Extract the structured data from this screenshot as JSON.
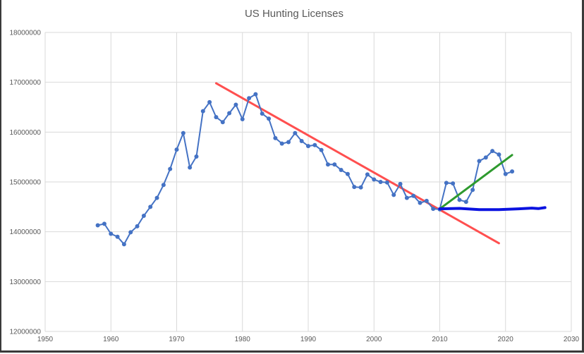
{
  "chart_data": {
    "type": "scatter",
    "title": "US Hunting Licenses",
    "xlabel": "",
    "ylabel": "",
    "xlim": [
      1950,
      2030
    ],
    "ylim": [
      12000000,
      18000000
    ],
    "x_ticks": [
      "1950",
      "1960",
      "1970",
      "1980",
      "1990",
      "2000",
      "2010",
      "2020",
      "2030"
    ],
    "y_ticks": [
      "12000000",
      "13000000",
      "14000000",
      "15000000",
      "16000000",
      "17000000",
      "18000000"
    ],
    "grid": true,
    "legend": "none",
    "series": [
      {
        "style": "line-markers",
        "color": "#4472c4",
        "x": [
          1958,
          1959,
          1960,
          1961,
          1962,
          1963,
          1964,
          1965,
          1966,
          1967,
          1968,
          1969,
          1970,
          1971,
          1972,
          1973,
          1974,
          1975,
          1976,
          1977,
          1978,
          1979,
          1980,
          1981,
          1982,
          1983,
          1984,
          1985,
          1986,
          1987,
          1988,
          1989,
          1990,
          1991,
          1992,
          1993,
          1994,
          1995,
          1996,
          1997,
          1998,
          1999,
          2000,
          2001,
          2002,
          2003,
          2004,
          2005,
          2006,
          2007,
          2008,
          2009,
          2010,
          2011,
          2012,
          2013,
          2014,
          2015,
          2016,
          2017,
          2018,
          2019,
          2020,
          2021
        ],
        "y": [
          14130000,
          14160000,
          13960000,
          13900000,
          13750000,
          13990000,
          14110000,
          14320000,
          14500000,
          14680000,
          14940000,
          15260000,
          15650000,
          15980000,
          15290000,
          15510000,
          16420000,
          16600000,
          16300000,
          16200000,
          16380000,
          16550000,
          16260000,
          16680000,
          16760000,
          16370000,
          16270000,
          15880000,
          15770000,
          15800000,
          15980000,
          15820000,
          15720000,
          15740000,
          15640000,
          15350000,
          15350000,
          15240000,
          15160000,
          14900000,
          14890000,
          15150000,
          15050000,
          15000000,
          14990000,
          14740000,
          14960000,
          14680000,
          14720000,
          14580000,
          14620000,
          14460000,
          14450000,
          14980000,
          14970000,
          14640000,
          14600000,
          14840000,
          15420000,
          15490000,
          15620000,
          15550000,
          15160000,
          15210000
        ]
      }
    ],
    "annotations": [
      {
        "kind": "trend-line",
        "color": "#ff4f4f",
        "x": [
          1976,
          2019
        ],
        "y": [
          16980000,
          13770000
        ]
      },
      {
        "kind": "trend-line",
        "color": "#2e9a2e",
        "x": [
          2010,
          2021
        ],
        "y": [
          14460000,
          15540000
        ]
      },
      {
        "kind": "freehand-line",
        "color": "#0a12e0",
        "x": [
          2010,
          2013,
          2016,
          2019,
          2022,
          2024,
          2025,
          2026
        ],
        "y": [
          14460000,
          14470000,
          14445000,
          14445000,
          14460000,
          14475000,
          14465000,
          14485000
        ]
      }
    ]
  }
}
